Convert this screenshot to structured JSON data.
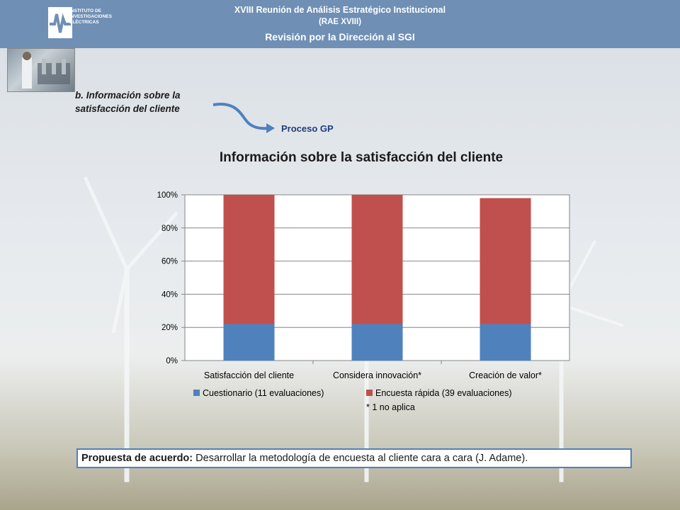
{
  "header": {
    "logo_text": [
      "INSTITUTO DE",
      "INVESTIGACIONES",
      "ELÉCTRICAS"
    ],
    "line1": "XVIII Reunión de Análisis Estratégico Institucional",
    "line2": "(RAE XVIII)",
    "line3": "Revisión por la Dirección al SGI"
  },
  "section": {
    "label_line1": "b. Información sobre la",
    "label_line2": "satisfacción del cliente",
    "process": "Proceso GP"
  },
  "chart_data": {
    "type": "bar",
    "stacked": true,
    "title": "Información sobre la satisfacción del cliente",
    "categories": [
      "Satisfacción del cliente",
      "Considera innovación*",
      "Creación de valor*"
    ],
    "series": [
      {
        "name": "Cuestionario (11 evaluaciones)",
        "values": [
          22,
          22,
          22
        ],
        "color": "#4f81bd"
      },
      {
        "name": "Encuesta rápida (39 evaluaciones)",
        "values": [
          78,
          78,
          76
        ],
        "color": "#c0504d"
      }
    ],
    "ylim": [
      0,
      100
    ],
    "yticks": [
      "0%",
      "20%",
      "40%",
      "60%",
      "80%",
      "100%"
    ],
    "grid": true,
    "legend": "bottom"
  },
  "note": "* 1 no aplica",
  "proposal": {
    "label": "Propuesta de acuerdo:",
    "text": " Desarrollar la metodología de encuesta al cliente cara a cara (J. Adame)."
  }
}
